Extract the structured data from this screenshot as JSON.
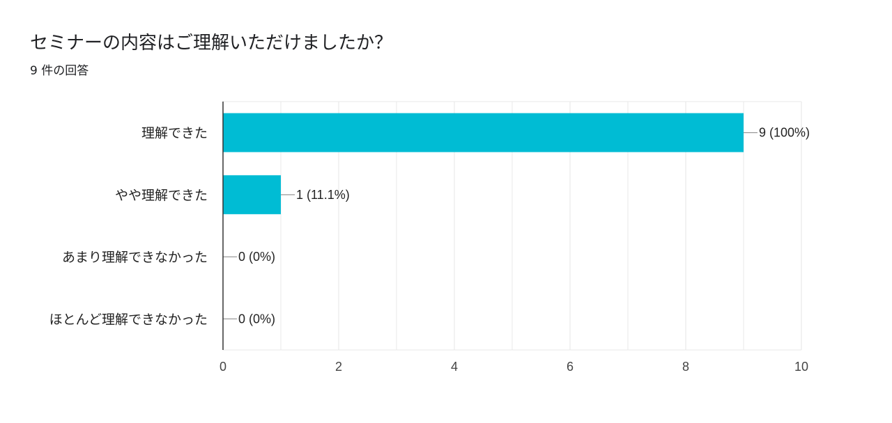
{
  "header": {
    "title": "セミナーの内容はご理解いただけましたか？",
    "subtitle": "9 件の回答"
  },
  "colors": {
    "bar": "#00BCD4",
    "grid": "#e8e8e8",
    "axis": "#333333",
    "leader": "#999999"
  },
  "chart_data": {
    "type": "bar",
    "orientation": "horizontal",
    "title": "セミナーの内容はご理解いただけましたか？",
    "categories": [
      "理解できた",
      "やや理解できた",
      "あまり理解できなかった",
      "ほとんど理解できなかった"
    ],
    "values": [
      9,
      1,
      0,
      0
    ],
    "data_labels": [
      "9 (100%)",
      "1 (11.1%)",
      "0 (0%)",
      "0 (0%)"
    ],
    "xlim": [
      0,
      10
    ],
    "xticks": [
      0,
      2,
      4,
      6,
      8,
      10
    ],
    "xlabel": "",
    "ylabel": "",
    "grid": true,
    "legend": "none"
  }
}
